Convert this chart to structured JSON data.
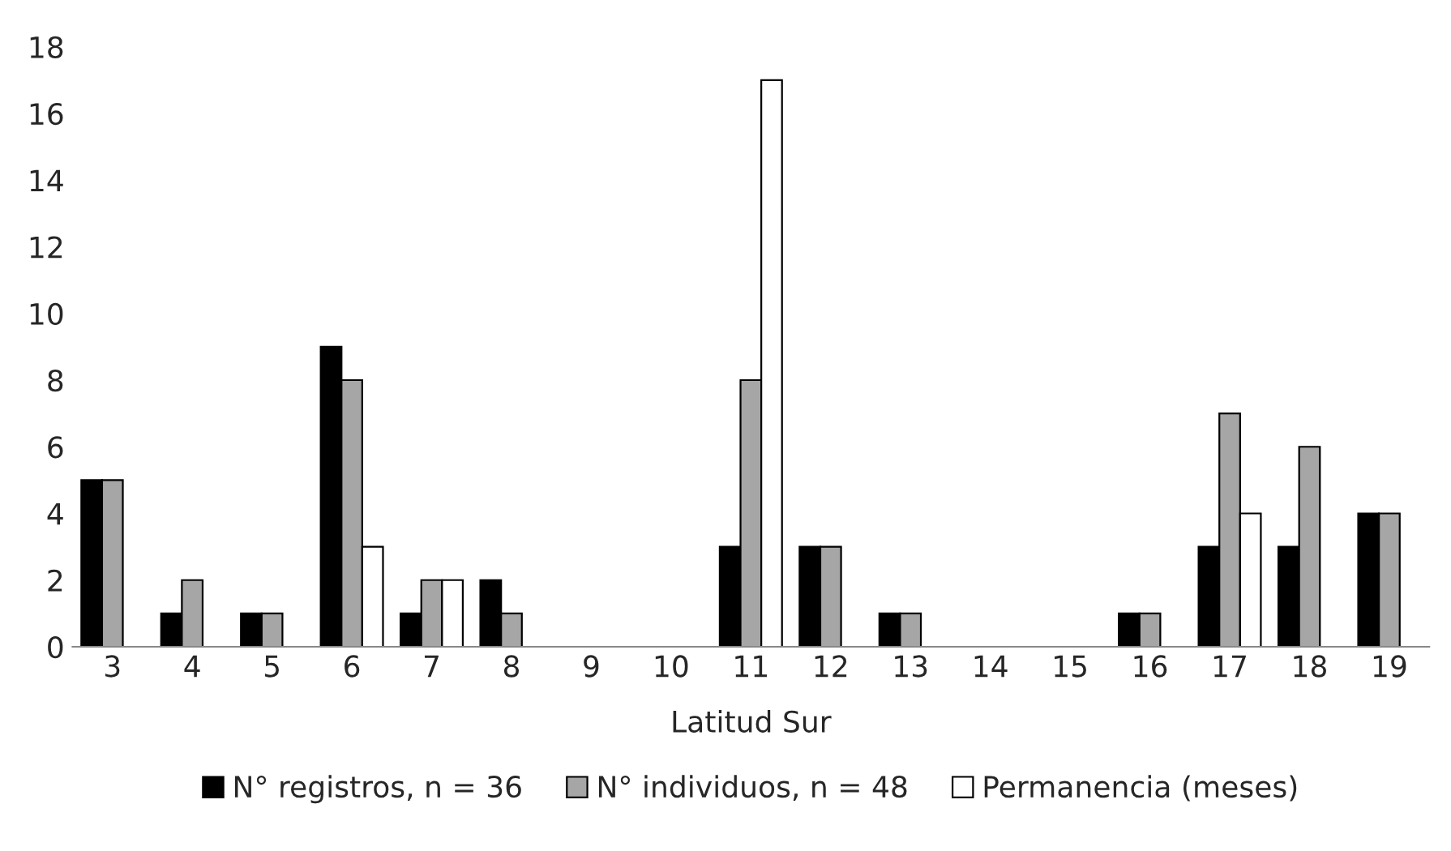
{
  "chart_data": {
    "type": "bar",
    "xlabel": "Latitud Sur",
    "categories": [
      "3",
      "4",
      "5",
      "6",
      "7",
      "8",
      "9",
      "10",
      "11",
      "12",
      "13",
      "14",
      "15",
      "16",
      "17",
      "18",
      "19"
    ],
    "series": [
      {
        "name": "N° registros, n = 36",
        "color": "#000000",
        "values": [
          5,
          1,
          1,
          9,
          1,
          2,
          0,
          0,
          3,
          3,
          1,
          0,
          0,
          1,
          3,
          3,
          4
        ]
      },
      {
        "name": "N° individuos, n = 48",
        "color": "#a6a6a6",
        "values": [
          5,
          2,
          1,
          8,
          2,
          1,
          0,
          0,
          8,
          3,
          1,
          0,
          0,
          1,
          7,
          6,
          4
        ]
      },
      {
        "name": "Permanencia (meses)",
        "color": "#ffffff",
        "values": [
          0,
          0,
          0,
          3,
          2,
          0,
          0,
          0,
          17,
          0,
          0,
          0,
          0,
          0,
          4,
          0,
          0
        ]
      }
    ],
    "ylim": [
      0,
      18
    ],
    "yticks": [
      0,
      2,
      4,
      6,
      8,
      10,
      12,
      14,
      16,
      18
    ],
    "grid": false,
    "legend": "bottom"
  }
}
